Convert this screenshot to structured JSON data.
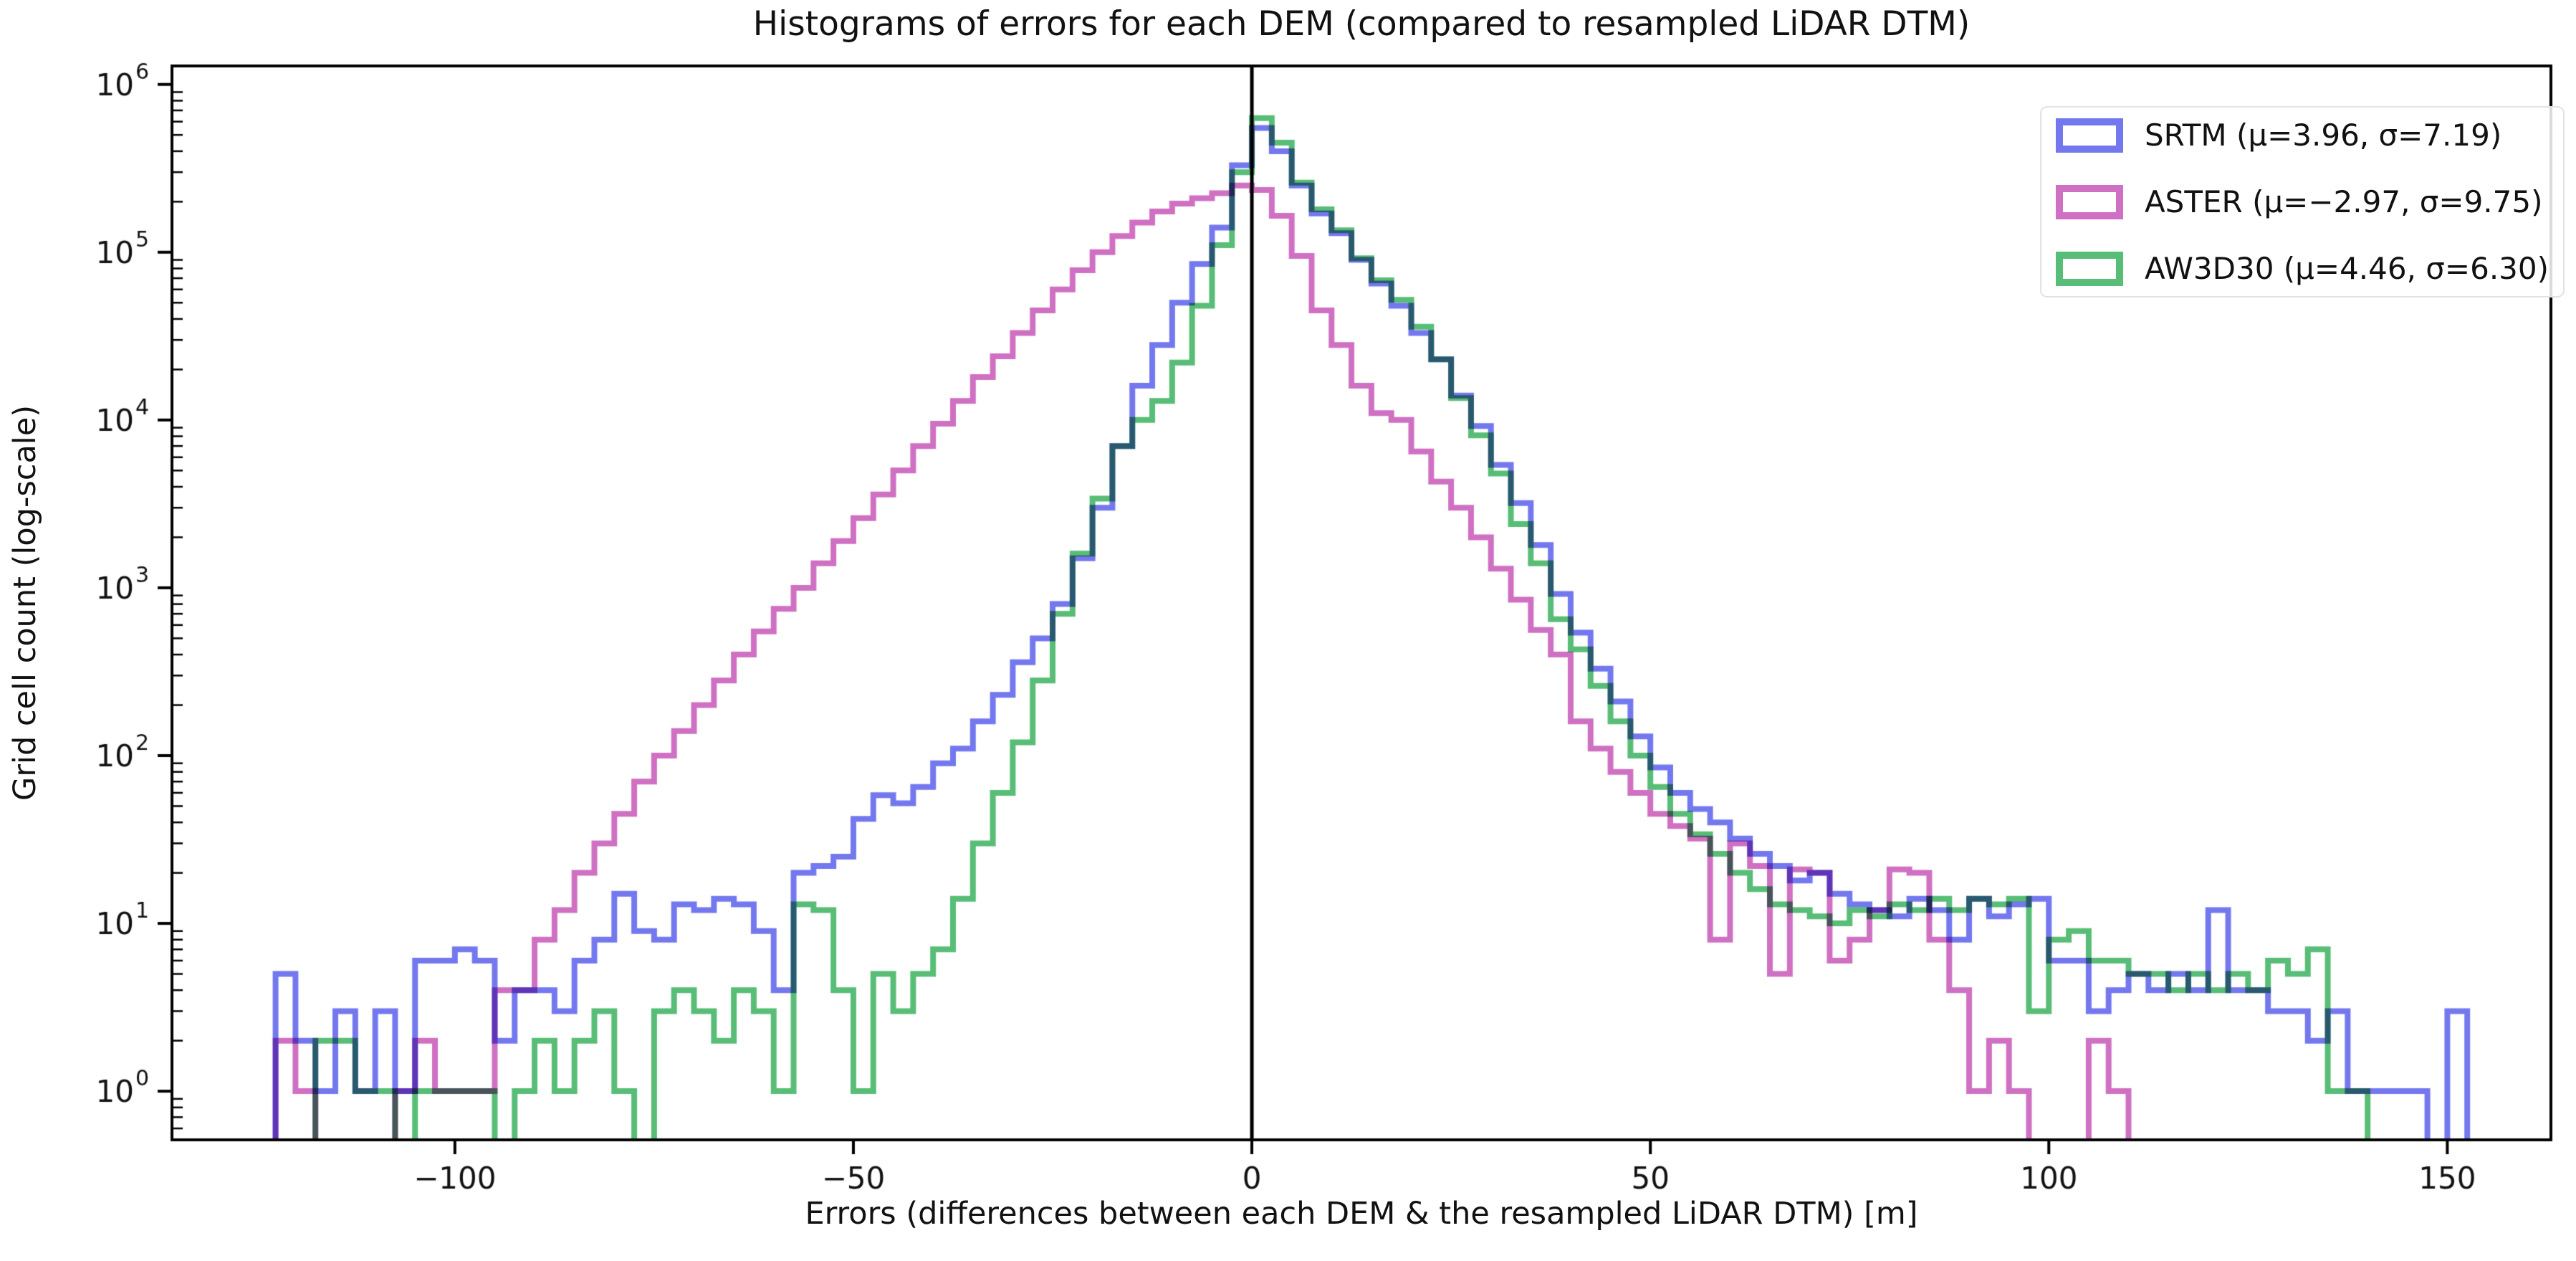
{
  "figure": {
    "title": "Histograms of errors for each DEM (compared to resampled LiDAR DTM)",
    "xlabel": "Errors (differences between each DEM & the resampled LiDAR DTM) [m]",
    "ylabel": "Grid cell count (log-scale)"
  },
  "chart_data": {
    "type": "line",
    "variant": "step-histogram",
    "y_scale": "log",
    "grid": false,
    "legend_position": "upper right",
    "title": "Histograms of errors for each DEM (compared to resampled LiDAR DTM)",
    "xlabel": "Errors (differences between each DEM & the resampled LiDAR DTM) [m]",
    "ylabel": "Grid cell count (log-scale)",
    "bin_start": -125,
    "bin_width": 2.5,
    "n_bins": 112,
    "xlim": [
      -135.5,
      163
    ],
    "ylim_log": [
      -0.29,
      6.11
    ],
    "xticks": [
      -100,
      -50,
      0,
      50,
      100,
      150
    ],
    "ytick_exponents": [
      0,
      1,
      2,
      3,
      4,
      5,
      6
    ],
    "vline_x": 0,
    "vline_color": "#000000",
    "axis_color": "#000000",
    "series": [
      {
        "name": "SRTM",
        "label": "SRTM (μ=3.96, σ=7.19)",
        "mu": 3.96,
        "sigma": 7.19,
        "color": "#7478ee",
        "counts": [
          0,
          5,
          2,
          1,
          3,
          1,
          3,
          1,
          6,
          6,
          7,
          6,
          2,
          4,
          4,
          3,
          6,
          8,
          15,
          9,
          8,
          13,
          12,
          14,
          13,
          9,
          4,
          20,
          22,
          25,
          42,
          58,
          52,
          65,
          90,
          110,
          160,
          230,
          360,
          500,
          800,
          1500,
          3000,
          7000,
          16000,
          28000,
          50000,
          85000,
          140000,
          330000,
          550000,
          400000,
          250000,
          170000,
          130000,
          90000,
          65000,
          48000,
          33000,
          23000,
          14000,
          9200,
          5400,
          3200,
          1800,
          920,
          540,
          330,
          210,
          130,
          85,
          60,
          48,
          40,
          32,
          26,
          22,
          18,
          20,
          15,
          13,
          12,
          11,
          14,
          12,
          8,
          14,
          11,
          13,
          14,
          6,
          6,
          3,
          4,
          5,
          4,
          5,
          4,
          12,
          4,
          4,
          3,
          3,
          2,
          3,
          1,
          1,
          1,
          1,
          0,
          3,
          0
        ]
      },
      {
        "name": "ASTER",
        "label": "ASTER (μ=−2.97, σ=9.75)",
        "mu": -2.97,
        "sigma": 9.75,
        "color": "#cf70c3",
        "counts": [
          0,
          2,
          1,
          0,
          0,
          0,
          0,
          1,
          2,
          1,
          1,
          1,
          4,
          4,
          8,
          12,
          20,
          30,
          45,
          70,
          100,
          140,
          200,
          280,
          400,
          550,
          750,
          1000,
          1400,
          1900,
          2600,
          3600,
          5000,
          7000,
          9500,
          13000,
          18000,
          24000,
          33000,
          45000,
          60000,
          78000,
          100000,
          125000,
          150000,
          175000,
          195000,
          210000,
          225000,
          250000,
          235000,
          165000,
          95000,
          45000,
          28000,
          16000,
          11000,
          10000,
          6500,
          4300,
          3000,
          2000,
          1300,
          850,
          560,
          400,
          160,
          110,
          80,
          60,
          45,
          38,
          32,
          8,
          30,
          22,
          5,
          21,
          20,
          6,
          8,
          12,
          21,
          20,
          8,
          4,
          1,
          2,
          1,
          0,
          0,
          0,
          2,
          1,
          0,
          0,
          0,
          0,
          0,
          0,
          0,
          0,
          0,
          0,
          0,
          0,
          0,
          0,
          0,
          0,
          0,
          0
        ]
      },
      {
        "name": "AW3D30",
        "label": "AW3D30 (μ=4.46, σ=6.30)",
        "mu": 4.46,
        "sigma": 6.3,
        "color": "#58bd76",
        "counts": [
          0,
          0,
          0,
          2,
          2,
          1,
          1,
          0,
          1,
          1,
          1,
          1,
          0,
          1,
          2,
          1,
          2,
          3,
          1,
          0,
          3,
          4,
          3,
          2,
          4,
          3,
          1,
          13,
          12,
          4,
          1,
          5,
          3,
          5,
          7,
          14,
          30,
          60,
          120,
          280,
          700,
          1600,
          3400,
          7000,
          10000,
          13000,
          22000,
          48000,
          110000,
          300000,
          630000,
          450000,
          260000,
          180000,
          135000,
          92000,
          68000,
          52000,
          36000,
          23000,
          13500,
          8100,
          4800,
          2400,
          1400,
          650,
          430,
          260,
          160,
          100,
          65,
          45,
          34,
          26,
          20,
          16,
          13,
          12,
          11,
          10,
          12,
          11,
          13,
          12,
          14,
          12,
          14,
          13,
          14,
          3,
          8,
          9,
          6,
          6,
          5,
          5,
          4,
          5,
          4,
          5,
          4,
          6,
          5,
          7,
          1,
          1,
          0,
          0,
          0,
          0,
          0,
          0
        ]
      }
    ]
  }
}
